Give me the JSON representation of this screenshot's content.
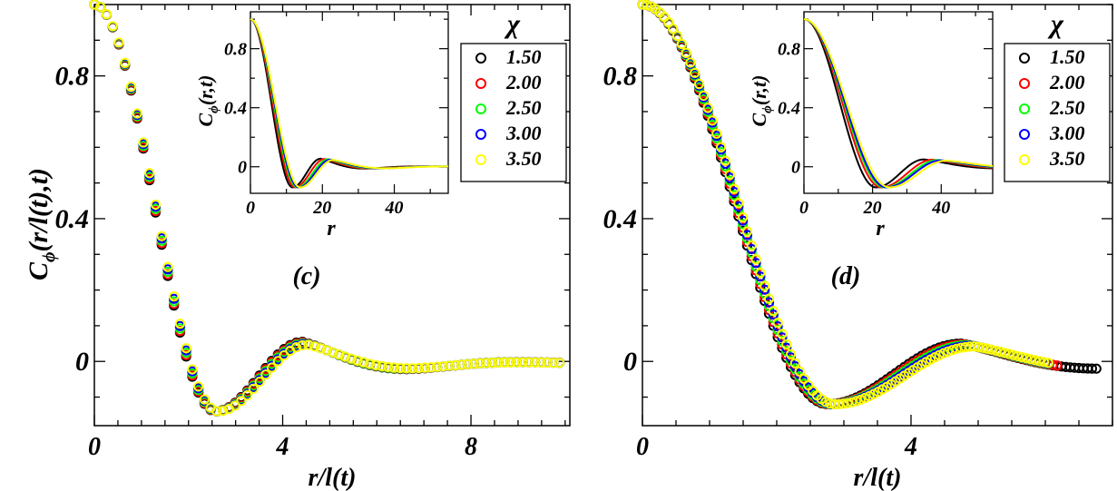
{
  "chart_data": [
    {
      "type": "scatter",
      "panel_label": "(c)",
      "xlabel": "r/l(t)",
      "ylabel": "C",
      "ylabel_sub": "ϕ",
      "ylabel_args": "(r/l(t),t)",
      "xlim": [
        0,
        10.1
      ],
      "ylim": [
        -0.18,
        1.0
      ],
      "x_ticks": [
        0,
        4,
        8
      ],
      "x_tick_labels": [
        "0",
        "4",
        "8"
      ],
      "y_ticks": [
        0,
        0.4,
        0.8
      ],
      "y_tick_labels": [
        "0",
        "0.4",
        "0.8"
      ],
      "legend_title": "χ",
      "series": [
        {
          "name": "1.50",
          "color": "#000000",
          "x_max": 10.0,
          "x0": 4.42,
          "a": 0.055,
          "w": 0.5,
          "b": 0.18
        },
        {
          "name": "2.00",
          "color": "#ff0000",
          "x_max": 10.0,
          "x0": 4.44,
          "a": 0.053,
          "w": 0.5,
          "b": 0.18
        },
        {
          "name": "2.50",
          "color": "#00ff00",
          "x_max": 10.0,
          "x0": 4.47,
          "a": 0.051,
          "w": 0.49,
          "b": 0.18
        },
        {
          "name": "3.00",
          "color": "#0000ff",
          "x_max": 10.0,
          "x0": 4.5,
          "a": 0.049,
          "w": 0.49,
          "b": 0.18
        },
        {
          "name": "3.50",
          "color": "#ffff00",
          "x_max": 10.0,
          "x0": 4.53,
          "a": 0.047,
          "w": 0.48,
          "b": 0.18
        }
      ],
      "inset": {
        "type": "line",
        "xlabel": "r",
        "ylabel": "C",
        "ylabel_sub": "ϕ",
        "ylabel_args": "(r,t)",
        "xlim": [
          0,
          55
        ],
        "ylim": [
          -0.18,
          1.05
        ],
        "x_ticks": [
          0,
          20,
          40
        ],
        "x_tick_labels": [
          "0",
          "20",
          "40"
        ],
        "y_ticks": [
          0,
          0.4,
          0.8
        ],
        "y_tick_labels": [
          "0",
          "0.4",
          "0.8"
        ],
        "series": [
          {
            "name": "1.50",
            "color": "#000000",
            "x0": 19.5,
            "a": 0.055,
            "w": 2.2,
            "b": 0.18
          },
          {
            "name": "2.00",
            "color": "#ff0000",
            "x0": 20.6,
            "a": 0.053,
            "w": 2.3,
            "b": 0.18
          },
          {
            "name": "2.50",
            "color": "#00ff00",
            "x0": 21.6,
            "a": 0.051,
            "w": 2.4,
            "b": 0.18
          },
          {
            "name": "3.00",
            "color": "#0000ff",
            "x0": 22.3,
            "a": 0.049,
            "w": 2.5,
            "b": 0.18
          },
          {
            "name": "3.50",
            "color": "#ffff00",
            "x0": 23.0,
            "a": 0.047,
            "w": 2.6,
            "b": 0.18
          }
        ]
      }
    },
    {
      "type": "scatter",
      "panel_label": "(d)",
      "xlabel": "r/l(t)",
      "ylabel": "",
      "xlim": [
        0,
        7.0
      ],
      "ylim": [
        -0.18,
        1.0
      ],
      "x_ticks": [
        0,
        4
      ],
      "x_tick_labels": [
        "0",
        "4"
      ],
      "y_ticks": [
        0,
        0.4,
        0.8
      ],
      "y_tick_labels": [
        "0",
        "0.4",
        "0.8"
      ],
      "legend_title": "χ",
      "series": [
        {
          "name": "1.50",
          "color": "#000000",
          "x_max": 6.8,
          "x0": 4.75,
          "a": 0.05,
          "w": 0.43,
          "b": 0.1
        },
        {
          "name": "2.00",
          "color": "#ff0000",
          "x_max": 6.2,
          "x0": 4.8,
          "a": 0.048,
          "w": 0.42,
          "b": 0.1
        },
        {
          "name": "2.50",
          "color": "#00ff00",
          "x_max": 6.1,
          "x0": 4.85,
          "a": 0.046,
          "w": 0.41,
          "b": 0.1
        },
        {
          "name": "3.00",
          "color": "#0000ff",
          "x_max": 6.1,
          "x0": 4.9,
          "a": 0.044,
          "w": 0.4,
          "b": 0.1
        },
        {
          "name": "3.50",
          "color": "#ffff00",
          "x_max": 6.05,
          "x0": 4.95,
          "a": 0.042,
          "w": 0.39,
          "b": 0.1
        }
      ],
      "inset": {
        "type": "line",
        "xlabel": "r",
        "ylabel": "C",
        "ylabel_sub": "ϕ",
        "ylabel_args": "(r,t)",
        "xlim": [
          0,
          55
        ],
        "ylim": [
          -0.18,
          1.05
        ],
        "x_ticks": [
          0,
          20,
          40
        ],
        "x_tick_labels": [
          "0",
          "20",
          "40"
        ],
        "y_ticks": [
          0,
          0.4,
          0.8
        ],
        "y_tick_labels": [
          "0",
          "0.4",
          "0.8"
        ],
        "series": [
          {
            "name": "1.50",
            "color": "#000000",
            "x0": 35.0,
            "a": 0.05,
            "w": 2.1,
            "b": 0.1
          },
          {
            "name": "2.00",
            "color": "#ff0000",
            "x0": 37.5,
            "a": 0.048,
            "w": 2.25,
            "b": 0.1
          },
          {
            "name": "2.50",
            "color": "#00ff00",
            "x0": 39.0,
            "a": 0.046,
            "w": 2.35,
            "b": 0.1
          },
          {
            "name": "3.00",
            "color": "#0000ff",
            "x0": 40.0,
            "a": 0.044,
            "w": 2.4,
            "b": 0.1
          },
          {
            "name": "3.50",
            "color": "#ffff00",
            "x0": 41.5,
            "a": 0.042,
            "w": 2.45,
            "b": 0.1
          }
        ]
      }
    }
  ]
}
